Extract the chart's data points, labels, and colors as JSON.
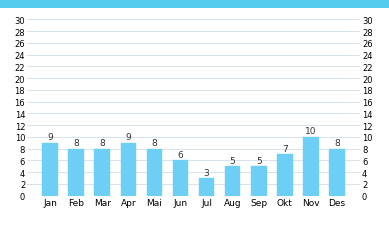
{
  "categories": [
    "Jan",
    "Feb",
    "Mar",
    "Apr",
    "Mai",
    "Jun",
    "Jul",
    "Aug",
    "Sep",
    "Okt",
    "Nov",
    "Des"
  ],
  "values": [
    9,
    8,
    8,
    9,
    8,
    6,
    3,
    5,
    5,
    7,
    10,
    8
  ],
  "bar_color": "#6dcff6",
  "bar_edge_color": "#6dcff6",
  "ylim": [
    0,
    30
  ],
  "yticks": [
    0,
    2,
    4,
    6,
    8,
    10,
    12,
    14,
    16,
    18,
    20,
    22,
    24,
    26,
    28,
    30
  ],
  "top_strip_color": "#55ccee",
  "background_chart": "#ffffff",
  "fig_bg": "#ffffff",
  "grid_color": "#c8d8e8",
  "label_fontsize": 6.5,
  "value_fontsize": 6.5,
  "tick_fontsize": 6.0,
  "bar_width": 0.6
}
